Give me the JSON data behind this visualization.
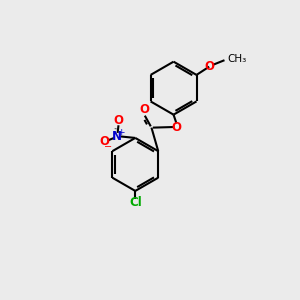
{
  "bg_color": "#ebebeb",
  "bond_color": "#000000",
  "o_color": "#ff0000",
  "n_color": "#0000cc",
  "cl_color": "#00aa00",
  "lw": 1.5,
  "figsize": [
    3.0,
    3.0
  ],
  "dpi": 100,
  "xlim": [
    0,
    10
  ],
  "ylim": [
    0,
    10
  ]
}
